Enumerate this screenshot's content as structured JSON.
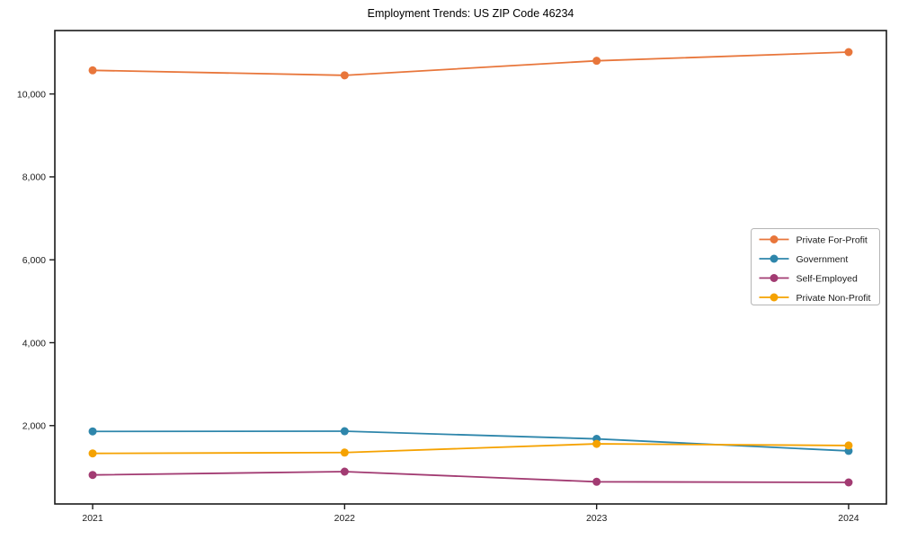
{
  "page": {
    "background_color": "#ffffff",
    "axis_color": "#1a1a1a"
  },
  "chart_data": {
    "type": "line",
    "title": "Employment Trends: US ZIP Code 46234",
    "x": [
      2021,
      2022,
      2023,
      2024
    ],
    "categories": [
      "2021",
      "2022",
      "2023",
      "2024"
    ],
    "series": [
      {
        "name": "Private For-Profit",
        "color": "#E8763B",
        "values": [
          10570,
          10450,
          10800,
          11010
        ]
      },
      {
        "name": "Government",
        "color": "#2E86AB",
        "values": [
          1860,
          1865,
          1680,
          1390
        ]
      },
      {
        "name": "Self-Employed",
        "color": "#A23B72",
        "values": [
          810,
          890,
          645,
          630
        ]
      },
      {
        "name": "Private Non-Profit",
        "color": "#F5A201",
        "values": [
          1330,
          1350,
          1560,
          1520
        ]
      }
    ],
    "xlabel": "",
    "ylabel": "",
    "xlim": [
      2020.85,
      2024.15
    ],
    "ylim": [
      110,
      11530
    ],
    "xticks": [
      {
        "value": 2021,
        "label": "2021"
      },
      {
        "value": 2022,
        "label": "2022"
      },
      {
        "value": 2023,
        "label": "2023"
      },
      {
        "value": 2024,
        "label": "2024"
      }
    ],
    "yticks": [
      {
        "value": 2000,
        "label": "2,000"
      },
      {
        "value": 4000,
        "label": "4,000"
      },
      {
        "value": 6000,
        "label": "6,000"
      },
      {
        "value": 8000,
        "label": "8,000"
      },
      {
        "value": 10000,
        "label": "10,000"
      }
    ],
    "grid": false,
    "marker": "circle",
    "legend": {
      "position": "middle-right",
      "border_color": "#b5b5b5",
      "background": "#ffffff",
      "labels": [
        "Private For-Profit",
        "Government",
        "Self-Employed",
        "Private Non-Profit"
      ]
    }
  }
}
